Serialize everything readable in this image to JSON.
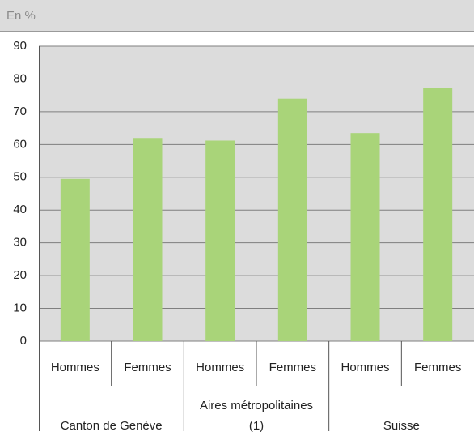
{
  "chart_data": {
    "type": "bar",
    "subtitle": "En %",
    "categories": [
      "Hommes",
      "Femmes",
      "Hommes",
      "Femmes",
      "Hommes",
      "Femmes"
    ],
    "groups": [
      "Canton de Genève",
      "Aires métropolitaines (1)",
      "Suisse"
    ],
    "values": [
      49.5,
      62,
      61.2,
      74,
      63.5,
      77.3
    ],
    "color": "#a9d479",
    "ylim": [
      0,
      90
    ],
    "yticks": [
      0,
      10,
      20,
      30,
      40,
      50,
      60,
      70,
      80,
      90
    ],
    "grid": true
  }
}
